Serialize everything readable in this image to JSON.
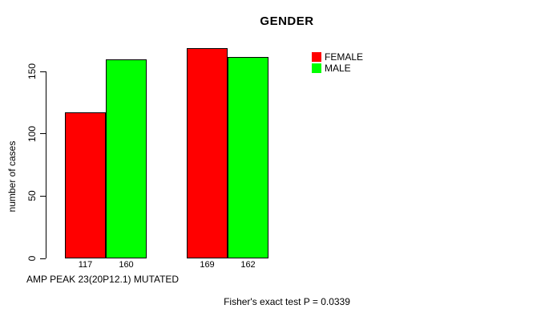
{
  "chart_data": {
    "type": "bar",
    "title": "GENDER",
    "ylabel": "number of cases",
    "xlabel": "AMP PEAK 23(20P12.1) MUTATED",
    "annotation": "Fisher's exact test P = 0.0339",
    "yticks": [
      0,
      50,
      100,
      150
    ],
    "ylim": [
      0,
      150
    ],
    "grid": false,
    "legend_position": "top-right",
    "series": [
      {
        "name": "FEMALE",
        "color": "#FF0000",
        "values": [
          117,
          169
        ]
      },
      {
        "name": "MALE",
        "color": "#00FF00",
        "values": [
          160,
          162
        ]
      }
    ],
    "bar_value_labels": [
      "117",
      "160",
      "169",
      "162"
    ],
    "colors": {
      "female": "#FF0000",
      "male": "#00FF00",
      "axis": "#000000",
      "background": "#FFFFFF"
    }
  }
}
